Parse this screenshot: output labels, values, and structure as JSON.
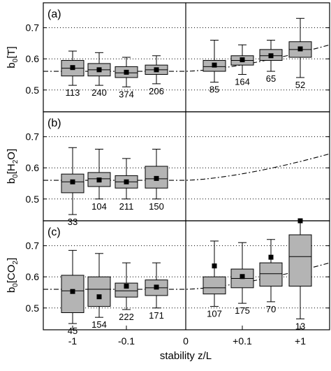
{
  "figure": {
    "xlabel": "stability z/L",
    "xticks": [
      "-1",
      "-0.1",
      "0",
      "+0.1",
      "+1"
    ]
  },
  "chart_data": [
    {
      "type": "box",
      "panel": "(a)",
      "ylabel_main": "b",
      "ylabel_sub": "0",
      "ylabel_bracket": "[T]",
      "ylim": [
        0.43,
        0.78
      ],
      "yticks": [
        0.5,
        0.6,
        0.7
      ],
      "grid": "horizontal dotted at 0.5, 0.6, 0.7",
      "fit_curve": {
        "style": "dash-dot",
        "neutral_value": 0.56,
        "value_at_right_edge": 0.645
      },
      "boxes": [
        {
          "side": "unstable",
          "q1": 0.545,
          "median": 0.57,
          "q3": 0.595,
          "whisker_low": 0.515,
          "whisker_high": 0.625,
          "mean": 0.572,
          "n": "113"
        },
        {
          "side": "unstable",
          "q1": 0.545,
          "median": 0.565,
          "q3": 0.585,
          "whisker_low": 0.515,
          "whisker_high": 0.62,
          "mean": 0.565,
          "n": "240"
        },
        {
          "side": "unstable",
          "q1": 0.54,
          "median": 0.555,
          "q3": 0.575,
          "whisker_low": 0.51,
          "whisker_high": 0.605,
          "mean": 0.557,
          "n": "374"
        },
        {
          "side": "unstable",
          "q1": 0.55,
          "median": 0.565,
          "q3": 0.58,
          "whisker_low": 0.52,
          "whisker_high": 0.61,
          "mean": 0.565,
          "n": "206"
        },
        {
          "side": "stable",
          "q1": 0.56,
          "median": 0.575,
          "q3": 0.595,
          "whisker_low": 0.525,
          "whisker_high": 0.66,
          "mean": 0.58,
          "n": "85"
        },
        {
          "side": "stable",
          "q1": 0.58,
          "median": 0.595,
          "q3": 0.61,
          "whisker_low": 0.55,
          "whisker_high": 0.645,
          "mean": 0.597,
          "n": "164"
        },
        {
          "side": "stable",
          "q1": 0.595,
          "median": 0.61,
          "q3": 0.63,
          "whisker_low": 0.56,
          "whisker_high": 0.66,
          "mean": 0.61,
          "n": "65"
        },
        {
          "side": "stable",
          "q1": 0.605,
          "median": 0.63,
          "q3": 0.655,
          "whisker_low": 0.54,
          "whisker_high": 0.73,
          "mean": 0.632,
          "n": "52"
        }
      ]
    },
    {
      "type": "box",
      "panel": "(b)",
      "ylabel_main": "b",
      "ylabel_sub": "0",
      "ylabel_bracket_pre": "[H",
      "ylabel_bracket_sub": "2",
      "ylabel_bracket_post": "O]",
      "ylim": [
        0.43,
        0.78
      ],
      "yticks": [
        0.5,
        0.6,
        0.7
      ],
      "grid": "horizontal dotted at 0.5, 0.6, 0.7",
      "fit_curve": {
        "style": "dash-dot",
        "neutral_value": 0.56,
        "value_at_right_edge": 0.645
      },
      "boxes": [
        {
          "side": "unstable",
          "q1": 0.52,
          "median": 0.555,
          "q3": 0.58,
          "whisker_low": 0.45,
          "whisker_high": 0.665,
          "mean": 0.555,
          "n": "33"
        },
        {
          "side": "unstable",
          "q1": 0.54,
          "median": 0.565,
          "q3": 0.585,
          "whisker_low": 0.5,
          "whisker_high": 0.66,
          "mean": 0.561,
          "n": "104"
        },
        {
          "side": "unstable",
          "q1": 0.535,
          "median": 0.555,
          "q3": 0.575,
          "whisker_low": 0.5,
          "whisker_high": 0.63,
          "mean": 0.555,
          "n": "211"
        },
        {
          "side": "unstable",
          "q1": 0.535,
          "median": 0.565,
          "q3": 0.605,
          "whisker_low": 0.5,
          "whisker_high": 0.66,
          "mean": 0.566,
          "n": "150"
        }
      ]
    },
    {
      "type": "box",
      "panel": "(c)",
      "ylabel_main": "b",
      "ylabel_sub": "0",
      "ylabel_bracket_pre": "[CO",
      "ylabel_bracket_sub": "2",
      "ylabel_bracket_post": "]",
      "ylim": [
        0.43,
        0.78
      ],
      "yticks": [
        0.5,
        0.6,
        0.7
      ],
      "grid": "horizontal dotted at 0.5, 0.6, 0.7",
      "fit_curve": {
        "style": "dash-dot",
        "neutral_value": 0.56,
        "value_at_right_edge": 0.645
      },
      "boxes": [
        {
          "side": "unstable",
          "q1": 0.485,
          "median": 0.555,
          "q3": 0.605,
          "whisker_low": 0.45,
          "whisker_high": 0.685,
          "mean": 0.553,
          "n": "45"
        },
        {
          "side": "unstable",
          "q1": 0.505,
          "median": 0.56,
          "q3": 0.6,
          "whisker_low": 0.47,
          "whisker_high": 0.675,
          "mean": 0.536,
          "n": "154"
        },
        {
          "side": "unstable",
          "q1": 0.535,
          "median": 0.555,
          "q3": 0.58,
          "whisker_low": 0.495,
          "whisker_high": 0.645,
          "mean": 0.57,
          "n": "222"
        },
        {
          "side": "unstable",
          "q1": 0.54,
          "median": 0.565,
          "q3": 0.59,
          "whisker_low": 0.5,
          "whisker_high": 0.645,
          "mean": 0.567,
          "n": "171"
        },
        {
          "side": "stable",
          "q1": 0.545,
          "median": 0.565,
          "q3": 0.6,
          "whisker_low": 0.505,
          "whisker_high": 0.715,
          "mean": 0.635,
          "n": "107"
        },
        {
          "side": "stable",
          "q1": 0.565,
          "median": 0.595,
          "q3": 0.625,
          "whisker_low": 0.515,
          "whisker_high": 0.71,
          "mean": 0.601,
          "n": "175"
        },
        {
          "side": "stable",
          "q1": 0.57,
          "median": 0.61,
          "q3": 0.645,
          "whisker_low": 0.52,
          "whisker_high": 0.72,
          "mean": 0.663,
          "n": "70"
        },
        {
          "side": "stable",
          "q1": 0.57,
          "median": 0.665,
          "q3": 0.735,
          "whisker_low": 0.465,
          "whisker_high": 0.78,
          "mean": 0.78,
          "n": "13"
        }
      ]
    }
  ]
}
